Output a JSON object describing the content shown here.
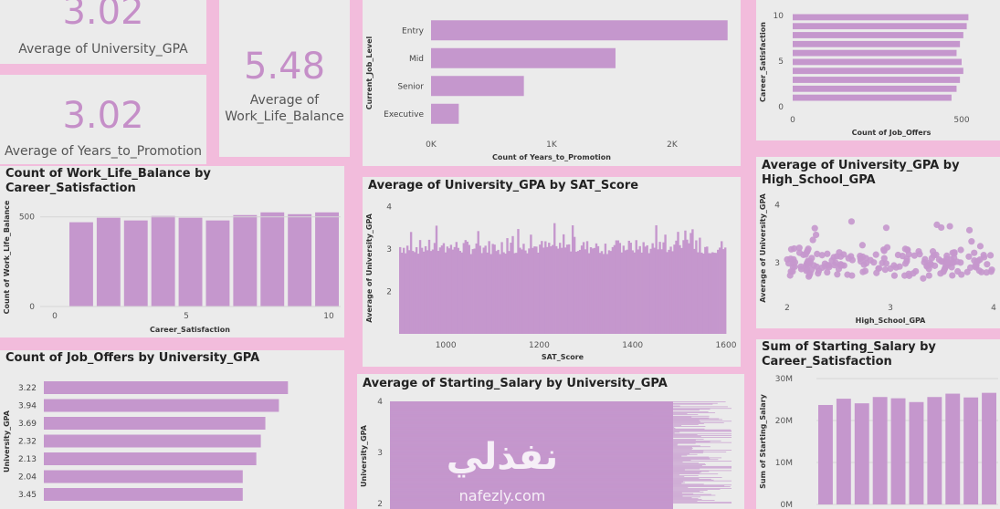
{
  "kpis": [
    {
      "value": "3.02",
      "label": "Average of University_GPA"
    },
    {
      "value": "3.02",
      "label": "Average of Years_to_Promotion"
    },
    {
      "value": "5.48",
      "label_line1": "Average of",
      "label_line2": "Work_Life_Balance"
    }
  ],
  "colors": {
    "bar": "#c597cd",
    "page": "#f2bcdc",
    "panel": "#ebebeb"
  },
  "watermark": {
    "arabic": "نفذلي",
    "latin": "nafezly.com"
  },
  "chart_data": [
    {
      "id": "level",
      "type": "bar",
      "orientation": "horizontal",
      "title": "",
      "xlabel": "Count of Years_to_Promotion",
      "ylabel": "Current_Job_Level",
      "categories": [
        "Entry",
        "Mid",
        "Senior",
        "Executive"
      ],
      "values": [
        2460,
        1530,
        770,
        230
      ],
      "xlim": [
        0,
        2500
      ],
      "xticks": [
        "0K",
        "1K",
        "2K"
      ],
      "xtick_values": [
        0,
        1000,
        2000
      ]
    },
    {
      "id": "offers_sat",
      "type": "bar",
      "orientation": "horizontal",
      "title": "",
      "xlabel": "Count of Job_Offers",
      "ylabel": "Career_Satisfaction",
      "values": [
        520,
        515,
        505,
        495,
        485,
        500,
        505,
        495,
        485,
        470
      ],
      "xlim": [
        0,
        600
      ],
      "xticks": [
        "0",
        "500"
      ],
      "xtick_values": [
        0,
        500
      ],
      "yticks": [
        "10",
        "5",
        "0"
      ]
    },
    {
      "id": "wlb",
      "type": "bar",
      "title": "Count of Work_Life_Balance by Career_Satisfaction",
      "xlabel": "Career_Satisfaction",
      "ylabel": "Count of Work_Life_Balance",
      "categories": [
        1,
        2,
        3,
        4,
        5,
        6,
        7,
        8,
        9,
        10
      ],
      "values": [
        470,
        495,
        480,
        505,
        495,
        480,
        510,
        525,
        515,
        525
      ],
      "ylim": [
        0,
        580
      ],
      "yticks": [
        0,
        500
      ],
      "xticks": [
        0,
        5,
        10
      ]
    },
    {
      "id": "gpa_sat",
      "type": "bar",
      "title": "Average of University_GPA by SAT_Score",
      "xlabel": "SAT_Score",
      "ylabel": "Average of University_GPA",
      "xlim": [
        900,
        1600
      ],
      "ylim": [
        1,
        4.1
      ],
      "xticks": [
        1000,
        1200,
        1400,
        1600
      ],
      "yticks": [
        2,
        3,
        4
      ],
      "typical_value": 3.05,
      "value_range": [
        2.7,
        3.9
      ]
    },
    {
      "id": "gpa_hs",
      "type": "scatter",
      "title": "Average of University_GPA by High_School_GPA",
      "xlabel": "High_School_GPA",
      "ylabel": "Average of University_GPA",
      "xlim": [
        2,
        4
      ],
      "ylim": [
        2.3,
        4.2
      ],
      "xticks": [
        2,
        3,
        4
      ],
      "yticks": [
        3,
        4
      ],
      "y_center": 3.0,
      "y_spread": 0.3
    },
    {
      "id": "offers_gpa",
      "type": "bar",
      "orientation": "horizontal",
      "title": "Count of Job_Offers by University_GPA",
      "xlabel": "",
      "ylabel": "University_GPA",
      "categories": [
        "3.22",
        "3.94",
        "3.69",
        "2.32",
        "2.13",
        "2.04",
        "3.45"
      ],
      "values": [
        27,
        26,
        24.5,
        24,
        23.5,
        22,
        22
      ],
      "xlim": [
        0,
        30
      ]
    },
    {
      "id": "salary_gpa",
      "type": "bar",
      "orientation": "horizontal",
      "title": "Average of Starting_Salary by University_GPA",
      "xlabel": "",
      "ylabel": "University_GPA",
      "ylim": [
        2,
        4
      ],
      "yticks": [
        4,
        3,
        2
      ]
    },
    {
      "id": "salary_sat",
      "type": "bar",
      "title": "Sum of Starting_Salary by Career_Satisfaction",
      "title_line1": "Sum of Starting_Salary by",
      "title_line2": "Career_Satisfaction",
      "xlabel": "",
      "ylabel": "Sum of Starting_Salary",
      "values": [
        23.7,
        25.2,
        24.1,
        25.6,
        25.3,
        24.4,
        25.6,
        26.4,
        25.5,
        26.6
      ],
      "ylim": [
        0,
        30
      ],
      "yticks": [
        "30M",
        "20M",
        "10M",
        "0M"
      ],
      "ytick_values": [
        30,
        20,
        10,
        0
      ]
    }
  ]
}
